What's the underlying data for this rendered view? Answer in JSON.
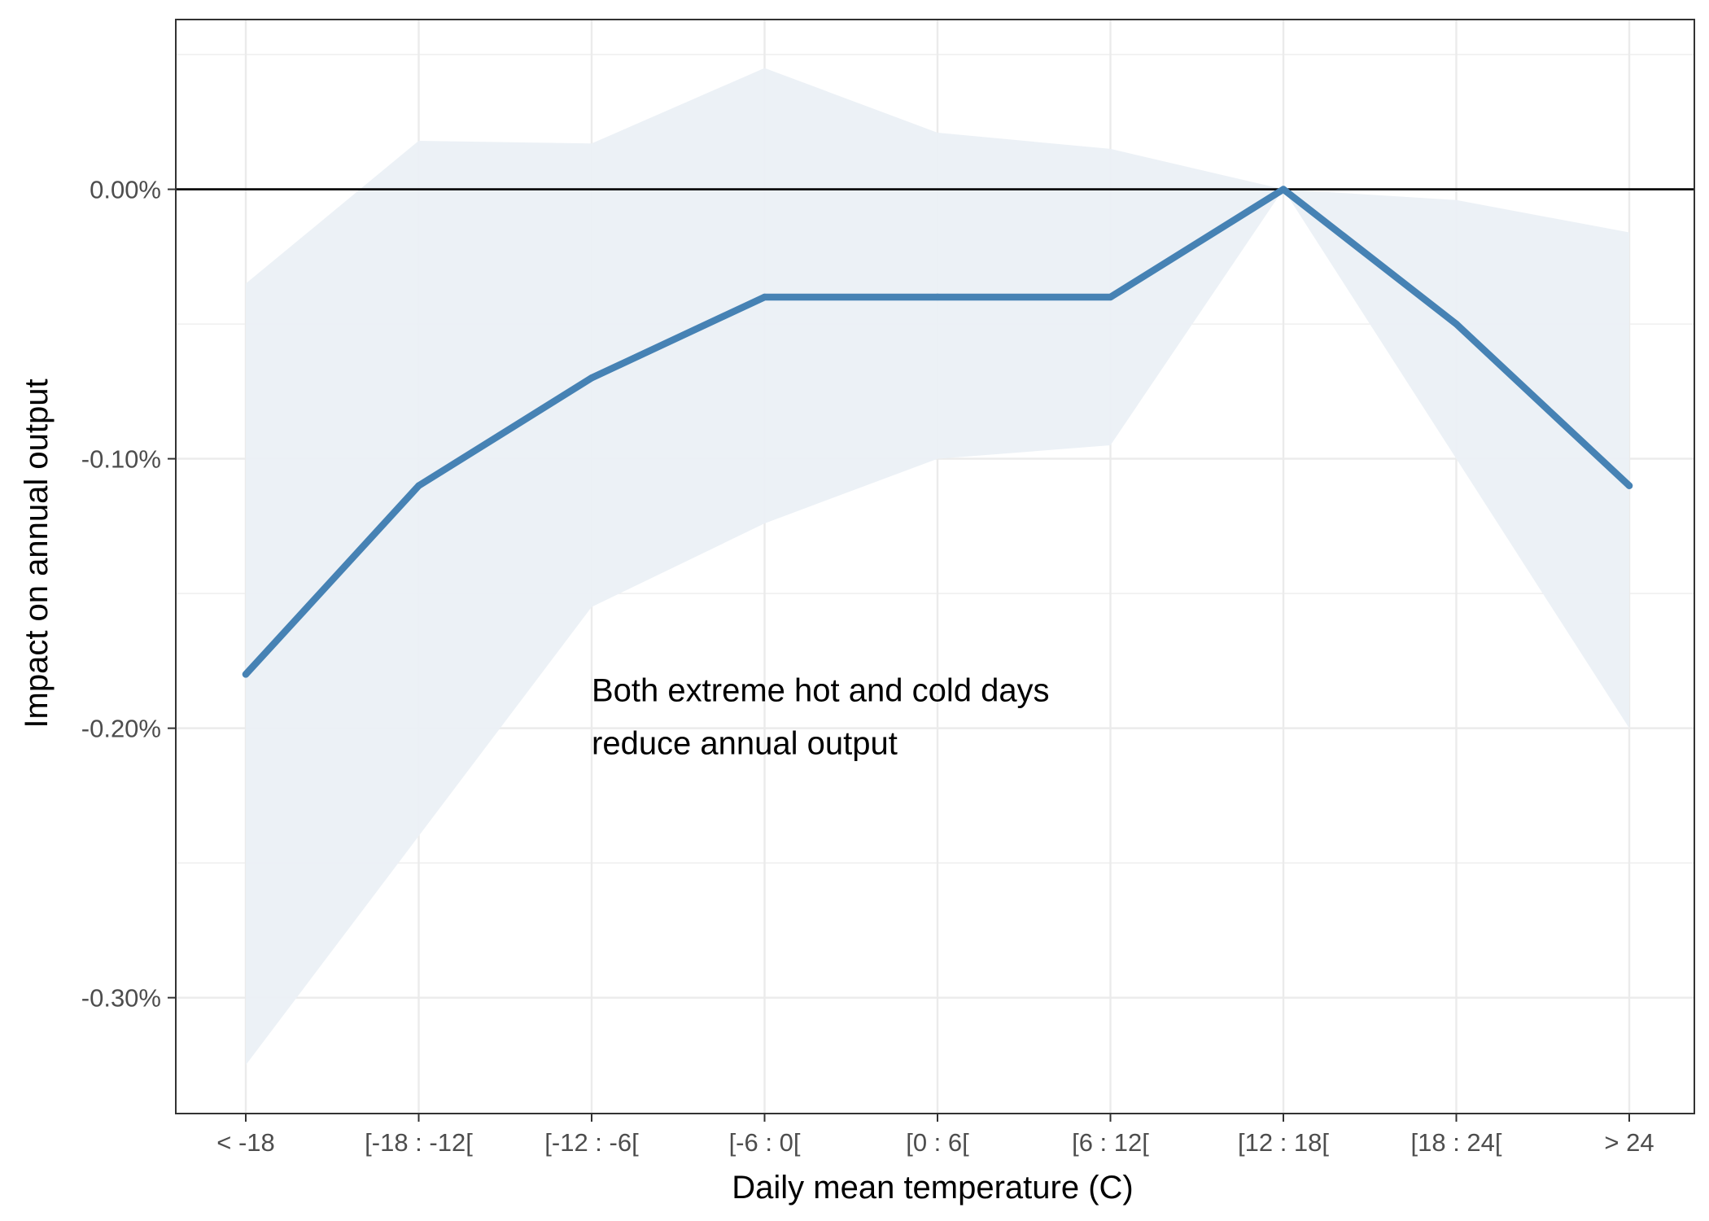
{
  "chart_data": {
    "type": "line",
    "title": "",
    "xlabel": "Daily mean temperature (C)",
    "ylabel": "Impact on annual output",
    "categories": [
      "< -18",
      "[-18 : -12[",
      "[-12 : -6[",
      "[-6 : 0[",
      "[0 : 6[",
      "[6 : 12[",
      "[12 : 18[",
      "[18 : 24[",
      "> 24"
    ],
    "series": [
      {
        "values": [
          -0.18,
          -0.11,
          -0.07,
          -0.04,
          -0.04,
          -0.04,
          0.0,
          -0.05,
          -0.11
        ],
        "ci_lower": [
          -0.325,
          -0.24,
          -0.155,
          -0.124,
          -0.1,
          -0.095,
          0.0,
          -0.1,
          -0.2
        ],
        "ci_upper": [
          -0.035,
          0.018,
          0.017,
          0.045,
          0.021,
          0.015,
          0.0,
          -0.004,
          -0.016
        ]
      }
    ],
    "ylim": [
      -0.343,
      0.063
    ],
    "yticks": [
      0.0,
      -0.1,
      -0.2,
      -0.3
    ],
    "ytick_labels": [
      "0.00%",
      "-0.10%",
      "-0.20%",
      "-0.30%"
    ],
    "reference_line": 0.0,
    "grid": true,
    "annotation": {
      "lines": [
        "Both extreme hot and cold days",
        "reduce annual output"
      ],
      "x_category": 2,
      "y_value": -0.19
    },
    "colors": {
      "line": "#4682B4",
      "band": "#EBF0F6",
      "grid": "#EBEBEB",
      "reference_line": "#000000",
      "axis": "#333333"
    }
  }
}
